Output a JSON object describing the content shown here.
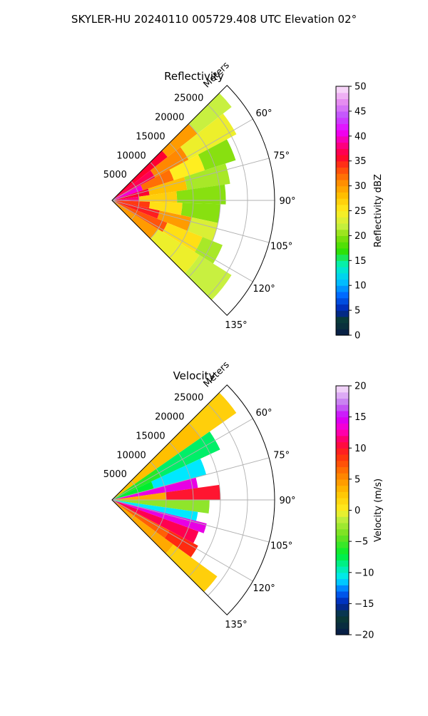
{
  "figure": {
    "title": "SKYLER-HU  20240110  005729.408 UTC Elevation 02°"
  },
  "chart_data": [
    {
      "type": "heatmap",
      "projection": "polar-sector",
      "title": "Reflectivity",
      "range_label": "Meters",
      "range_ticks": [
        5000,
        10000,
        15000,
        20000,
        25000
      ],
      "range_tick_labels": [
        "5000",
        "10000",
        "15000",
        "20000",
        "25000"
      ],
      "azimuth_ticks": [
        60,
        75,
        90,
        105,
        120,
        135
      ],
      "azimuth_tick_labels": [
        "60°",
        "75°",
        "90°",
        "105°",
        "120°",
        "135°"
      ],
      "azimuth_range": [
        45,
        135
      ],
      "range_lim": [
        0,
        30000
      ],
      "grid": true,
      "colorbar": {
        "label": "Reflectivity dBZ",
        "lim": [
          0,
          50
        ],
        "ticks": [
          0,
          5,
          10,
          15,
          20,
          25,
          30,
          35,
          40,
          45,
          50
        ],
        "tick_labels": [
          "0",
          "5",
          "10",
          "15",
          "20",
          "25",
          "30",
          "35",
          "40",
          "45",
          "50"
        ]
      },
      "field_sectors": [
        {
          "az": [
            45,
            52
          ],
          "range": [
            0,
            13000
          ],
          "value": 36
        },
        {
          "az": [
            45,
            52
          ],
          "range": [
            13000,
            20000
          ],
          "value": 30
        },
        {
          "az": [
            45,
            52
          ],
          "range": [
            20000,
            28000
          ],
          "value": 22
        },
        {
          "az": [
            52,
            62
          ],
          "range": [
            0,
            9000
          ],
          "value": 37
        },
        {
          "az": [
            52,
            62
          ],
          "range": [
            9000,
            16000
          ],
          "value": 31
        },
        {
          "az": [
            52,
            62
          ],
          "range": [
            16000,
            26000
          ],
          "value": 24
        },
        {
          "az": [
            62,
            72
          ],
          "range": [
            0,
            6000
          ],
          "value": 40
        },
        {
          "az": [
            62,
            72
          ],
          "range": [
            6000,
            12000
          ],
          "value": 32
        },
        {
          "az": [
            62,
            72
          ],
          "range": [
            12000,
            18000
          ],
          "value": 25
        },
        {
          "az": [
            62,
            72
          ],
          "range": [
            18000,
            24000
          ],
          "value": 20
        },
        {
          "az": [
            72,
            82
          ],
          "range": [
            0,
            7000
          ],
          "value": 36
        },
        {
          "az": [
            72,
            82
          ],
          "range": [
            7000,
            14000
          ],
          "value": 28
        },
        {
          "az": [
            72,
            82
          ],
          "range": [
            14000,
            22000
          ],
          "value": 21
        },
        {
          "az": [
            82,
            92
          ],
          "range": [
            0,
            5000
          ],
          "value": 38
        },
        {
          "az": [
            82,
            92
          ],
          "range": [
            5000,
            12000
          ],
          "value": 27
        },
        {
          "az": [
            82,
            92
          ],
          "range": [
            12000,
            21000
          ],
          "value": 20
        },
        {
          "az": [
            92,
            102
          ],
          "range": [
            0,
            7000
          ],
          "value": 34
        },
        {
          "az": [
            92,
            102
          ],
          "range": [
            7000,
            13000
          ],
          "value": 26
        },
        {
          "az": [
            92,
            102
          ],
          "range": [
            13000,
            20000
          ],
          "value": 20
        },
        {
          "az": [
            102,
            112
          ],
          "range": [
            0,
            9000
          ],
          "value": 35
        },
        {
          "az": [
            102,
            112
          ],
          "range": [
            9000,
            15000
          ],
          "value": 30
        },
        {
          "az": [
            102,
            112
          ],
          "range": [
            15000,
            20000
          ],
          "value": 23
        },
        {
          "az": [
            112,
            122
          ],
          "range": [
            0,
            11000
          ],
          "value": 33
        },
        {
          "az": [
            112,
            122
          ],
          "range": [
            11000,
            18000
          ],
          "value": 26
        },
        {
          "az": [
            112,
            122
          ],
          "range": [
            18000,
            22000
          ],
          "value": 21
        },
        {
          "az": [
            122,
            135
          ],
          "range": [
            0,
            10000
          ],
          "value": 30
        },
        {
          "az": [
            122,
            135
          ],
          "range": [
            10000,
            19000
          ],
          "value": 24
        },
        {
          "az": [
            122,
            135
          ],
          "range": [
            19000,
            26000
          ],
          "value": 22
        }
      ]
    },
    {
      "type": "heatmap",
      "projection": "polar-sector",
      "title": "Velocity",
      "range_label": "Meters",
      "range_ticks": [
        5000,
        10000,
        15000,
        20000,
        25000
      ],
      "range_tick_labels": [
        "5000",
        "10000",
        "15000",
        "20000",
        "25000"
      ],
      "azimuth_ticks": [
        60,
        75,
        90,
        105,
        120,
        135
      ],
      "azimuth_tick_labels": [
        "60°",
        "75°",
        "90°",
        "105°",
        "120°",
        "135°"
      ],
      "azimuth_range": [
        45,
        135
      ],
      "range_lim": [
        0,
        30000
      ],
      "grid": true,
      "colorbar": {
        "label": "Velocity (m/s)",
        "lim": [
          -20,
          20
        ],
        "ticks": [
          -20,
          -15,
          -10,
          -5,
          0,
          5,
          10,
          15,
          20
        ],
        "tick_labels": [
          "−20",
          "−15",
          "−10",
          "−5",
          "0",
          "5",
          "10",
          "15",
          "20"
        ]
      },
      "field_sectors": [
        {
          "az": [
            45,
            55
          ],
          "range": [
            0,
            20000
          ],
          "value": 3
        },
        {
          "az": [
            45,
            55
          ],
          "range": [
            20000,
            28000
          ],
          "value": 2
        },
        {
          "az": [
            55,
            65
          ],
          "range": [
            0,
            10000
          ],
          "value": -6
        },
        {
          "az": [
            55,
            65
          ],
          "range": [
            10000,
            22000
          ],
          "value": -8
        },
        {
          "az": [
            65,
            75
          ],
          "range": [
            0,
            8000
          ],
          "value": -7
        },
        {
          "az": [
            65,
            75
          ],
          "range": [
            8000,
            18000
          ],
          "value": -11
        },
        {
          "az": [
            75,
            82
          ],
          "range": [
            0,
            16000
          ],
          "value": 14
        },
        {
          "az": [
            82,
            90
          ],
          "range": [
            0,
            10000
          ],
          "value": 4
        },
        {
          "az": [
            82,
            90
          ],
          "range": [
            10000,
            20000
          ],
          "value": 10
        },
        {
          "az": [
            90,
            98
          ],
          "range": [
            0,
            18000
          ],
          "value": -3
        },
        {
          "az": [
            98,
            104
          ],
          "range": [
            0,
            16000
          ],
          "value": -11
        },
        {
          "az": [
            104,
            110
          ],
          "range": [
            0,
            18000
          ],
          "value": 14
        },
        {
          "az": [
            110,
            118
          ],
          "range": [
            0,
            17000
          ],
          "value": 11
        },
        {
          "az": [
            118,
            126
          ],
          "range": [
            0,
            12000
          ],
          "value": 7
        },
        {
          "az": [
            118,
            126
          ],
          "range": [
            12000,
            18000
          ],
          "value": 9
        },
        {
          "az": [
            126,
            135
          ],
          "range": [
            0,
            14000
          ],
          "value": 4
        },
        {
          "az": [
            126,
            135
          ],
          "range": [
            14000,
            24000
          ],
          "value": 2
        }
      ]
    }
  ]
}
